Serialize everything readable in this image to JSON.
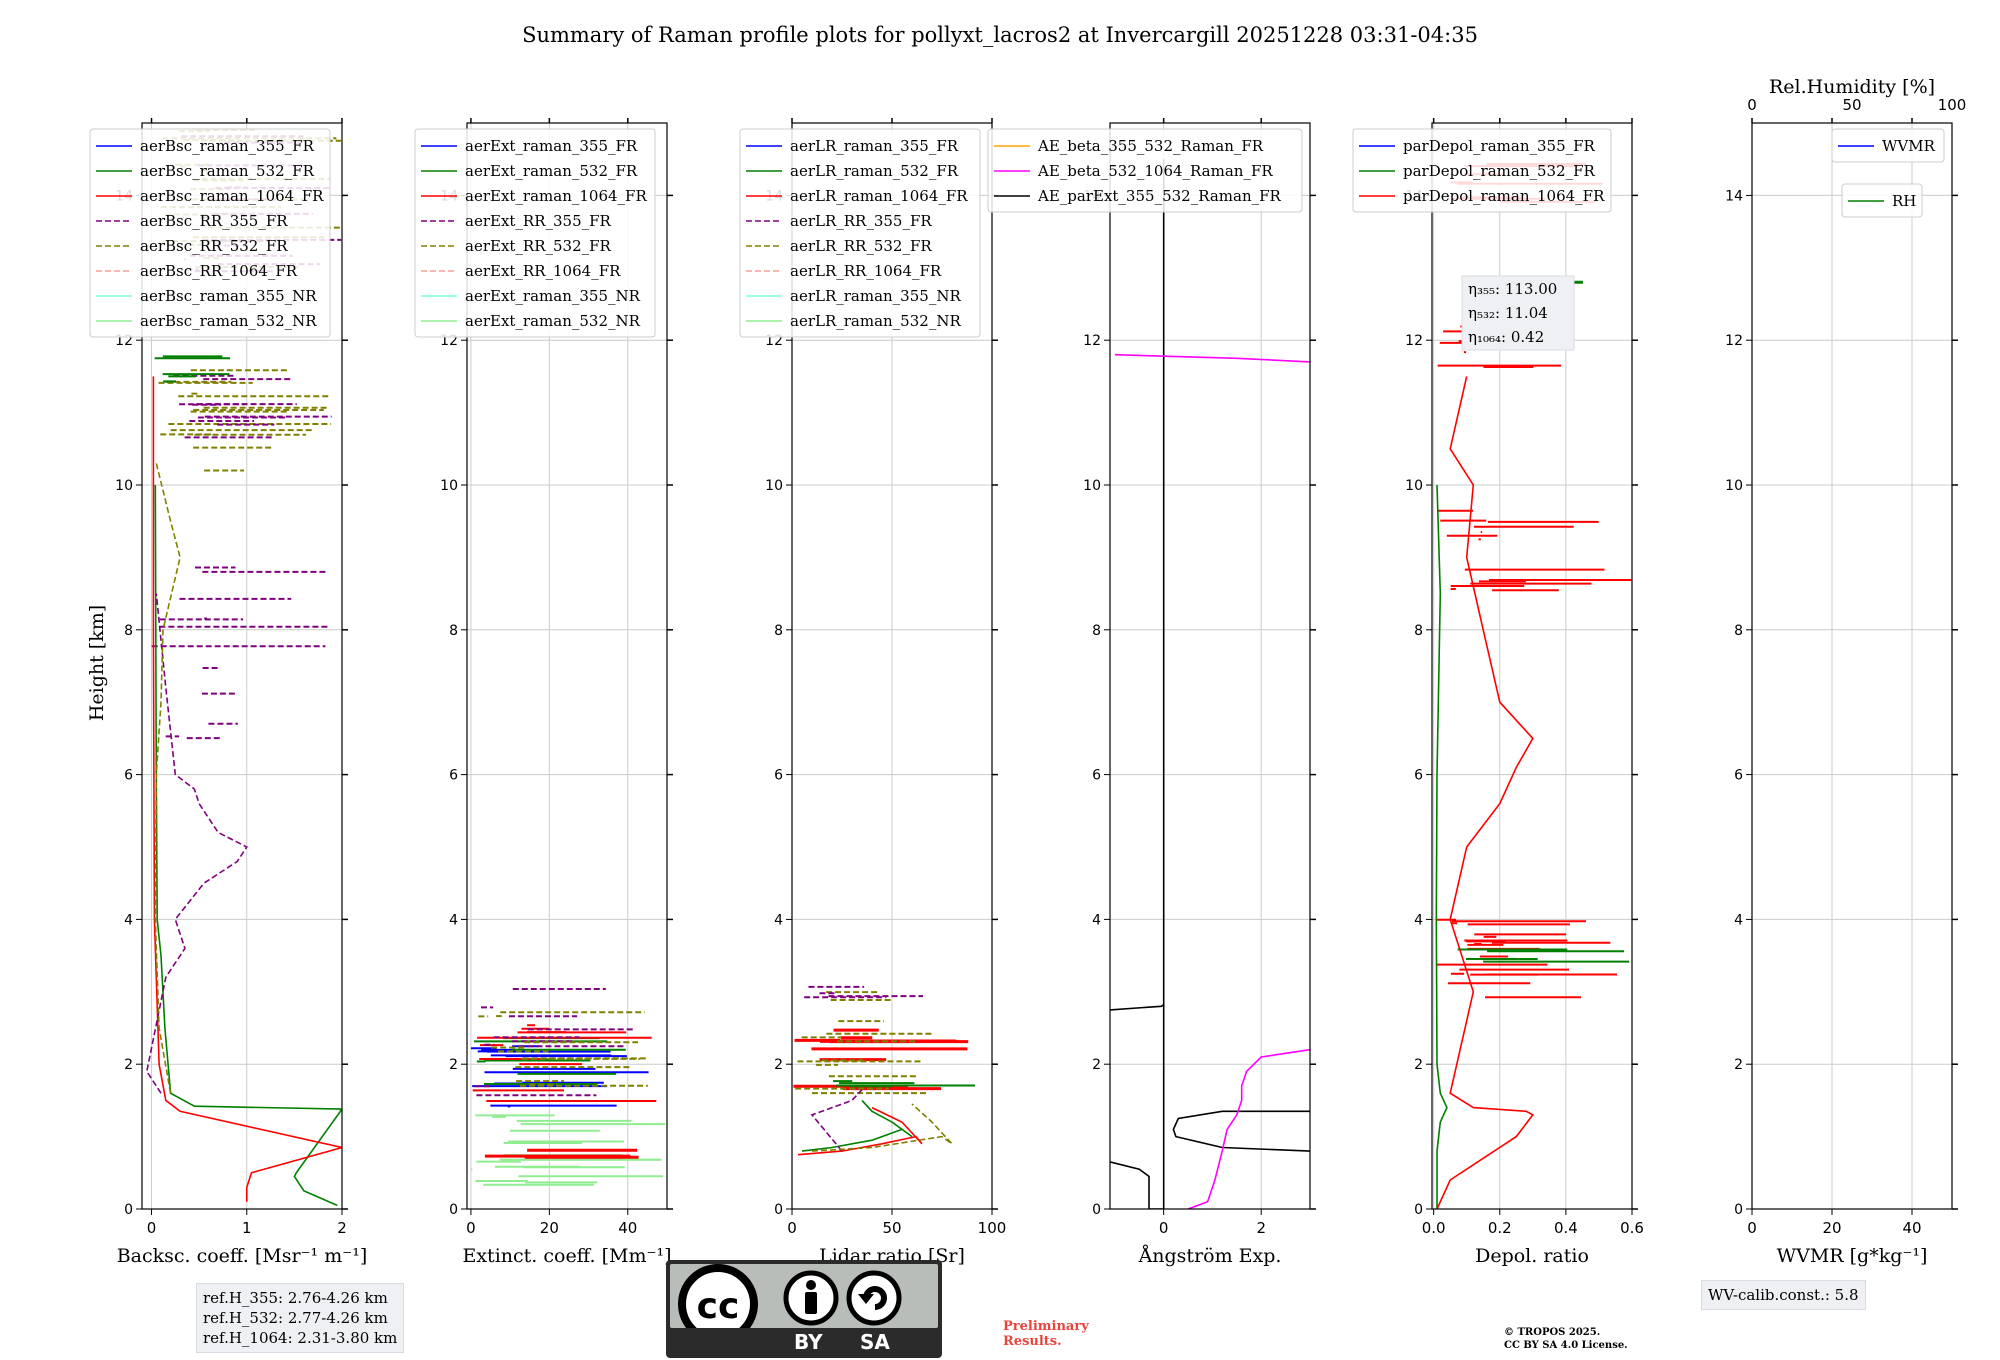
{
  "title": "Summary of Raman profile plots for pollyxt_lacros2 at Invercargill 20251228 03:31-04:35",
  "y_label": "Height [km]",
  "colors": {
    "c355": "#0000ff",
    "c532": "#008000",
    "c1064": "#ff0000",
    "rr355": "#800080",
    "rr532": "#808000",
    "rr1064": "#f4a090",
    "nr355": "#7fffd4",
    "nr532": "#90ee90",
    "ae1": "#ffa500",
    "ae2": "#ff00ff",
    "ae3": "#000000"
  },
  "chart_data": [
    {
      "type": "line",
      "panel": "backscatter",
      "xlabel": "Backsc. coeff. [Msr⁻¹ m⁻¹]",
      "xlim": [
        -0.1,
        2
      ],
      "ylim": [
        0,
        15
      ],
      "xticks": [
        "0",
        "1",
        "2"
      ],
      "yticks": [
        "0",
        "2",
        "4",
        "6",
        "8",
        "10",
        "12",
        "14"
      ],
      "legend": [
        "aerBsc_raman_355_FR",
        "aerBsc_raman_532_FR",
        "aerBsc_raman_1064_FR",
        "aerBsc_RR_355_FR",
        "aerBsc_RR_532_FR",
        "aerBsc_RR_1064_FR",
        "aerBsc_raman_355_NR",
        "aerBsc_raman_532_NR"
      ],
      "series": [
        {
          "name": "aerBsc_raman_532_FR",
          "x": [
            1.95,
            1.6,
            1.5,
            1.52,
            2.0,
            0.45,
            0.2,
            0.14,
            0.1,
            0.06,
            0.05,
            0.04
          ],
          "y": [
            0.05,
            0.25,
            0.45,
            0.5,
            1.38,
            1.42,
            1.6,
            2.5,
            3.5,
            4.0,
            6.0,
            10.0
          ]
        },
        {
          "name": "aerBsc_raman_1064_FR",
          "x": [
            1.0,
            1.0,
            1.05,
            2.0,
            0.3,
            0.15,
            0.08,
            0.03,
            0.02,
            0.02
          ],
          "y": [
            0.1,
            0.3,
            0.5,
            0.85,
            1.35,
            1.5,
            2.0,
            4.0,
            8.0,
            11.5
          ]
        },
        {
          "name": "aerBsc_RR_355_FR",
          "x": [
            0.1,
            -0.05,
            0.15,
            0.35,
            0.25,
            0.55,
            0.9,
            1.0,
            0.7,
            0.5,
            0.45,
            0.25,
            0.15,
            0.05
          ],
          "y": [
            1.6,
            1.9,
            3.2,
            3.6,
            4.0,
            4.5,
            4.8,
            5.0,
            5.2,
            5.6,
            5.8,
            6.0,
            7.2,
            8.5
          ]
        },
        {
          "name": "aerBsc_RR_532_FR",
          "x": [
            0.2,
            0.08,
            0.04,
            0.05,
            0.1,
            0.12,
            0.3,
            0.2,
            0.05
          ],
          "y": [
            1.6,
            2.5,
            4.0,
            6.0,
            7.0,
            8.0,
            9.0,
            9.5,
            10.3
          ]
        }
      ]
    },
    {
      "type": "line",
      "panel": "extinction",
      "xlabel": "Extinct. coeff. [Mm⁻¹]",
      "xlim": [
        -1,
        50
      ],
      "ylim": [
        0,
        15
      ],
      "xticks": [
        "0",
        "20",
        "40"
      ],
      "yticks": [
        "0",
        "2",
        "4",
        "6",
        "8",
        "10",
        "12",
        "14"
      ],
      "legend": [
        "aerExt_raman_355_FR",
        "aerExt_raman_532_FR",
        "aerExt_raman_1064_FR",
        "aerExt_RR_355_FR",
        "aerExt_RR_532_FR",
        "aerExt_RR_1064_FR",
        "aerExt_raman_355_NR",
        "aerExt_raman_532_NR"
      ]
    },
    {
      "type": "line",
      "panel": "lidar_ratio",
      "xlabel": "Lidar ratio [Sr]",
      "xlim": [
        0,
        100
      ],
      "ylim": [
        0,
        15
      ],
      "xticks": [
        "0",
        "50",
        "100"
      ],
      "yticks": [
        "0",
        "2",
        "4",
        "6",
        "8",
        "10",
        "12",
        "14"
      ],
      "legend": [
        "aerLR_raman_355_FR",
        "aerLR_raman_532_FR",
        "aerLR_raman_1064_FR",
        "aerLR_RR_355_FR",
        "aerLR_RR_532_FR",
        "aerLR_RR_1064_FR",
        "aerLR_raman_355_NR",
        "aerLR_raman_532_NR"
      ],
      "series": [
        {
          "name": "aerLR_raman_532_FR",
          "x": [
            5,
            20,
            40,
            55,
            60,
            50,
            40,
            35
          ],
          "y": [
            0.8,
            0.85,
            0.95,
            1.1,
            1.0,
            1.2,
            1.35,
            1.5
          ]
        },
        {
          "name": "aerLR_raman_1064_FR",
          "x": [
            3,
            25,
            45,
            62,
            65,
            55,
            40
          ],
          "y": [
            0.75,
            0.8,
            0.9,
            1.0,
            0.9,
            1.2,
            1.4
          ]
        },
        {
          "name": "aerLR_RR_355_FR",
          "x": [
            25,
            22,
            10,
            30,
            35
          ],
          "y": [
            0.8,
            0.9,
            1.3,
            1.5,
            1.65
          ]
        },
        {
          "name": "aerLR_RR_532_FR",
          "x": [
            10,
            40,
            75,
            80,
            70,
            60
          ],
          "y": [
            0.8,
            0.85,
            1.0,
            0.9,
            1.2,
            1.45
          ]
        }
      ]
    },
    {
      "type": "line",
      "panel": "angstrom",
      "xlabel": "Ångström Exp.",
      "xlim": [
        -1.1,
        3
      ],
      "ylim": [
        0,
        15
      ],
      "xticks": [
        "0",
        "2"
      ],
      "yticks": [
        "0",
        "2",
        "4",
        "6",
        "8",
        "10",
        "12",
        "14"
      ],
      "legend": [
        "AE_beta_355_532_Raman_FR",
        "AE_beta_532_1064_Raman_FR",
        "AE_parExt_355_532_Raman_FR"
      ],
      "series": [
        {
          "name": "AE_parExt_355_532_Raman_FR",
          "x": [
            -1.1,
            -0.5,
            -0.3,
            -0.3,
            0,
            0,
            0,
            0,
            0
          ],
          "y": [
            0.65,
            0.55,
            0.45,
            0.0,
            0.0,
            2.75,
            2.82,
            10,
            14.5
          ]
        },
        {
          "name": "AE_parExt_355_532_Raman_FR",
          "x": [
            3,
            1.2,
            0.25,
            0.2,
            0.3,
            1.2,
            3
          ],
          "y": [
            0.8,
            0.85,
            1.0,
            1.1,
            1.25,
            1.35,
            1.35
          ]
        },
        {
          "name": "AE_parExt_355_532_Raman_FR",
          "x": [
            -1.1,
            -0.05,
            0.0
          ],
          "y": [
            2.75,
            2.8,
            2.82
          ]
        },
        {
          "name": "AE_beta_532_1064_Raman_FR",
          "x": [
            0.5,
            0.9,
            1.05,
            1.2,
            1.3,
            1.5,
            1.6,
            1.6,
            1.7,
            2.0,
            2.5,
            3.0
          ],
          "y": [
            0.0,
            0.1,
            0.4,
            0.8,
            1.1,
            1.3,
            1.5,
            1.7,
            1.9,
            2.1,
            2.15,
            2.2
          ]
        },
        {
          "name": "AE_beta_532_1064_Raman_FR",
          "x": [
            -1.0,
            1.5,
            3.0
          ],
          "y": [
            11.8,
            11.75,
            11.7
          ]
        }
      ]
    },
    {
      "type": "line",
      "panel": "depol",
      "xlabel": "Depol. ratio",
      "xlim": [
        -0.005,
        0.6
      ],
      "ylim": [
        0,
        15
      ],
      "xticks": [
        "0.0",
        "0.2",
        "0.4",
        "0.6"
      ],
      "yticks": [
        "0",
        "2",
        "4",
        "6",
        "8",
        "10",
        "12",
        "14"
      ],
      "legend": [
        "parDepol_raman_355_FR",
        "parDepol_raman_532_FR",
        "parDepol_raman_1064_FR"
      ],
      "annotation": [
        "η₃₅₅: 113.00",
        "η₅₃₂: 11.04",
        "η₁₀₆₄: 0.42"
      ],
      "series": [
        {
          "name": "parDepol_raman_532_FR",
          "x": [
            0.01,
            0.01,
            0.02,
            0.04,
            0.02,
            0.01,
            0.008,
            0.01,
            0.02,
            0.01
          ],
          "y": [
            0.0,
            0.8,
            1.2,
            1.4,
            1.6,
            2.0,
            4.0,
            6.0,
            8.5,
            10.0
          ]
        },
        {
          "name": "parDepol_raman_1064_FR",
          "x": [
            0.01,
            0.05,
            0.15,
            0.25,
            0.3,
            0.28,
            0.12,
            0.05,
            0.08,
            0.12,
            0.05,
            0.1,
            0.2,
            0.25,
            0.3,
            0.2,
            0.15,
            0.1,
            0.12,
            0.05,
            0.1
          ],
          "y": [
            0.0,
            0.4,
            0.7,
            1.0,
            1.3,
            1.35,
            1.4,
            1.6,
            2.2,
            3.0,
            4.0,
            5.0,
            5.6,
            6.1,
            6.5,
            7.0,
            8.0,
            9.0,
            10.0,
            10.5,
            11.5
          ]
        }
      ]
    },
    {
      "type": "line",
      "panel": "wvmr",
      "xlabel": "WVMR [g*kg⁻¹]",
      "top_xlabel": "Rel.Humidity [%]",
      "xlim": [
        0,
        50
      ],
      "ylim": [
        0,
        15
      ],
      "xticks": [
        "0",
        "20",
        "40"
      ],
      "top_xticks": [
        "0",
        "50",
        "100"
      ],
      "yticks": [
        "0",
        "2",
        "4",
        "6",
        "8",
        "10",
        "12",
        "14"
      ],
      "legend": [
        "WVMR",
        "RH"
      ]
    }
  ],
  "ref_heights": [
    "ref.H_355: 2.76-4.26 km",
    "ref.H_532: 2.77-4.26 km",
    "ref.H_1064: 2.31-3.80 km"
  ],
  "wv_calib": "WV-calib.const.: 5.8",
  "license_badge": {
    "cc": "cc",
    "by": "BY",
    "sa": "SA"
  },
  "preliminary": [
    "Preliminary",
    "Results."
  ],
  "copyright": [
    "© TROPOS 2025.",
    "CC BY SA 4.0 License."
  ]
}
